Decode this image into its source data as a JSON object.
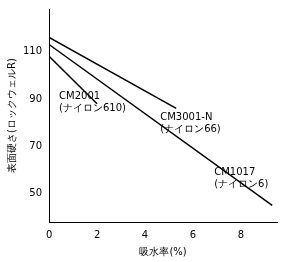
{
  "chart_data": {
    "type": "line",
    "x_label": "吸水率(%)",
    "y_label": "表面硬さ(ロックウェルR)",
    "xlim": [
      0,
      9.5
    ],
    "xticks": [
      0,
      2,
      4,
      6,
      8
    ],
    "ylim": [
      38,
      128
    ],
    "yticks": [
      50,
      70,
      90,
      110
    ],
    "grid": false,
    "series": [
      {
        "name": "CM3001-N (ナイロン66)",
        "color": "#000000",
        "x": [
          0,
          5.3
        ],
        "values": [
          116,
          86
        ]
      },
      {
        "name": "CM1017 (ナイロン6)",
        "color": "#000000",
        "x": [
          0,
          9.3
        ],
        "values": [
          113,
          45
        ]
      },
      {
        "name": "CM2001 (ナイロン610)",
        "color": "#000000",
        "x": [
          0,
          2.0
        ],
        "values": [
          108,
          88
        ]
      }
    ]
  }
}
